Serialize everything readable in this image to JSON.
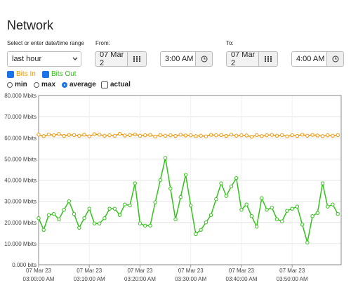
{
  "header": {
    "title": "Network"
  },
  "controls": {
    "range_label": "Select or enter date/time range",
    "range_value": "last hour",
    "from_label": "From:",
    "from_date": "07 Mar 2",
    "from_time": "3:00 AM",
    "to_label": "To:",
    "to_date": "07 Mar 2",
    "to_time": "4:00 AM",
    "modes": [
      "min",
      "max",
      "average"
    ],
    "selected_mode": "average",
    "actual_label": "actual"
  },
  "chart_data": {
    "type": "line",
    "grid": true,
    "ylim": [
      0,
      80
    ],
    "yticks": [
      {
        "value": 0,
        "label": "0.000 bits"
      },
      {
        "value": 10,
        "label": "10.000 Mbits"
      },
      {
        "value": 20,
        "label": "20.000 Mbits"
      },
      {
        "value": 30,
        "label": "30.000 Mbits"
      },
      {
        "value": 40,
        "label": "40.000 Mbits"
      },
      {
        "value": 50,
        "label": "50.000 Mbits"
      },
      {
        "value": 60,
        "label": "60.000 Mbits"
      },
      {
        "value": 70,
        "label": "70.000 Mbits"
      },
      {
        "value": 80,
        "label": "80.000 Mbits"
      }
    ],
    "xlim": [
      "03:00:00",
      "03:59:40"
    ],
    "xticks": [
      {
        "value": "03:00:00",
        "label": [
          "07 Mar 23",
          "03:00:00 AM"
        ]
      },
      {
        "value": "03:10:00",
        "label": [
          "07 Mar 23",
          "03:10:00 AM"
        ]
      },
      {
        "value": "03:20:00",
        "label": [
          "07 Mar 23",
          "03:20:00 AM"
        ]
      },
      {
        "value": "03:30:00",
        "label": [
          "07 Mar 23",
          "03:30:00 AM"
        ]
      },
      {
        "value": "03:40:00",
        "label": [
          "07 Mar 23",
          "03:40:00 AM"
        ]
      },
      {
        "value": "03:50:00",
        "label": [
          "07 Mar 23",
          "03:50:00 AM"
        ]
      }
    ],
    "x": [
      "03:00:00",
      "03:01:00",
      "03:02:00",
      "03:03:00",
      "03:04:00",
      "03:05:00",
      "03:06:00",
      "03:07:00",
      "03:08:00",
      "03:09:00",
      "03:10:00",
      "03:11:00",
      "03:12:00",
      "03:13:00",
      "03:14:00",
      "03:15:00",
      "03:16:00",
      "03:17:00",
      "03:18:00",
      "03:19:00",
      "03:20:00",
      "03:21:00",
      "03:22:00",
      "03:23:00",
      "03:24:00",
      "03:25:00",
      "03:26:00",
      "03:27:00",
      "03:28:00",
      "03:29:00",
      "03:30:00",
      "03:31:00",
      "03:32:00",
      "03:33:00",
      "03:34:00",
      "03:35:00",
      "03:36:00",
      "03:37:00",
      "03:38:00",
      "03:39:00",
      "03:40:00",
      "03:41:00",
      "03:42:00",
      "03:43:00",
      "03:44:00",
      "03:45:00",
      "03:46:00",
      "03:47:00",
      "03:48:00",
      "03:49:00",
      "03:50:00",
      "03:51:00",
      "03:52:00",
      "03:53:00",
      "03:54:00",
      "03:55:00",
      "03:56:00",
      "03:57:00",
      "03:58:00",
      "03:59:00"
    ],
    "series": [
      {
        "name": "Bits In",
        "color": "#f0960a",
        "values": [
          61.5,
          60.8,
          61.6,
          61.2,
          61.8,
          60.9,
          61.4,
          61.3,
          61.0,
          61.5,
          60.7,
          61.7,
          61.5,
          61.0,
          61.2,
          61.0,
          61.9,
          61.1,
          61.3,
          61.6,
          61.0,
          61.2,
          61.4,
          60.6,
          61.3,
          61.0,
          61.2,
          60.9,
          61.5,
          61.1,
          61.2,
          60.8,
          61.0,
          60.7,
          61.4,
          61.2,
          61.3,
          60.9,
          61.5,
          61.0,
          61.2,
          61.1,
          60.5,
          61.3,
          60.8,
          61.2,
          61.4,
          61.0,
          61.3,
          60.7,
          61.2,
          60.9,
          61.5,
          61.0,
          61.4,
          61.1,
          60.8,
          61.2,
          61.0,
          61.3
        ]
      },
      {
        "name": "Bits Out",
        "color": "#33c21a",
        "values": [
          22,
          16.5,
          23.5,
          24,
          21.5,
          26,
          30,
          24,
          17.5,
          22,
          26.5,
          19.5,
          19.5,
          22,
          26.5,
          26.5,
          23.5,
          28.5,
          28,
          38.5,
          19.5,
          18.5,
          18.5,
          29.5,
          40,
          50.5,
          36,
          21.5,
          32,
          42.5,
          28,
          14.5,
          16.5,
          20,
          23.5,
          31,
          38.5,
          32.5,
          37,
          41,
          26,
          28.5,
          23,
          18,
          31.5,
          26,
          27,
          21.5,
          20.5,
          25.5,
          26.5,
          27.5,
          19,
          10.5,
          23,
          24.5,
          38.5,
          27.5,
          28.5,
          24
        ]
      }
    ]
  }
}
